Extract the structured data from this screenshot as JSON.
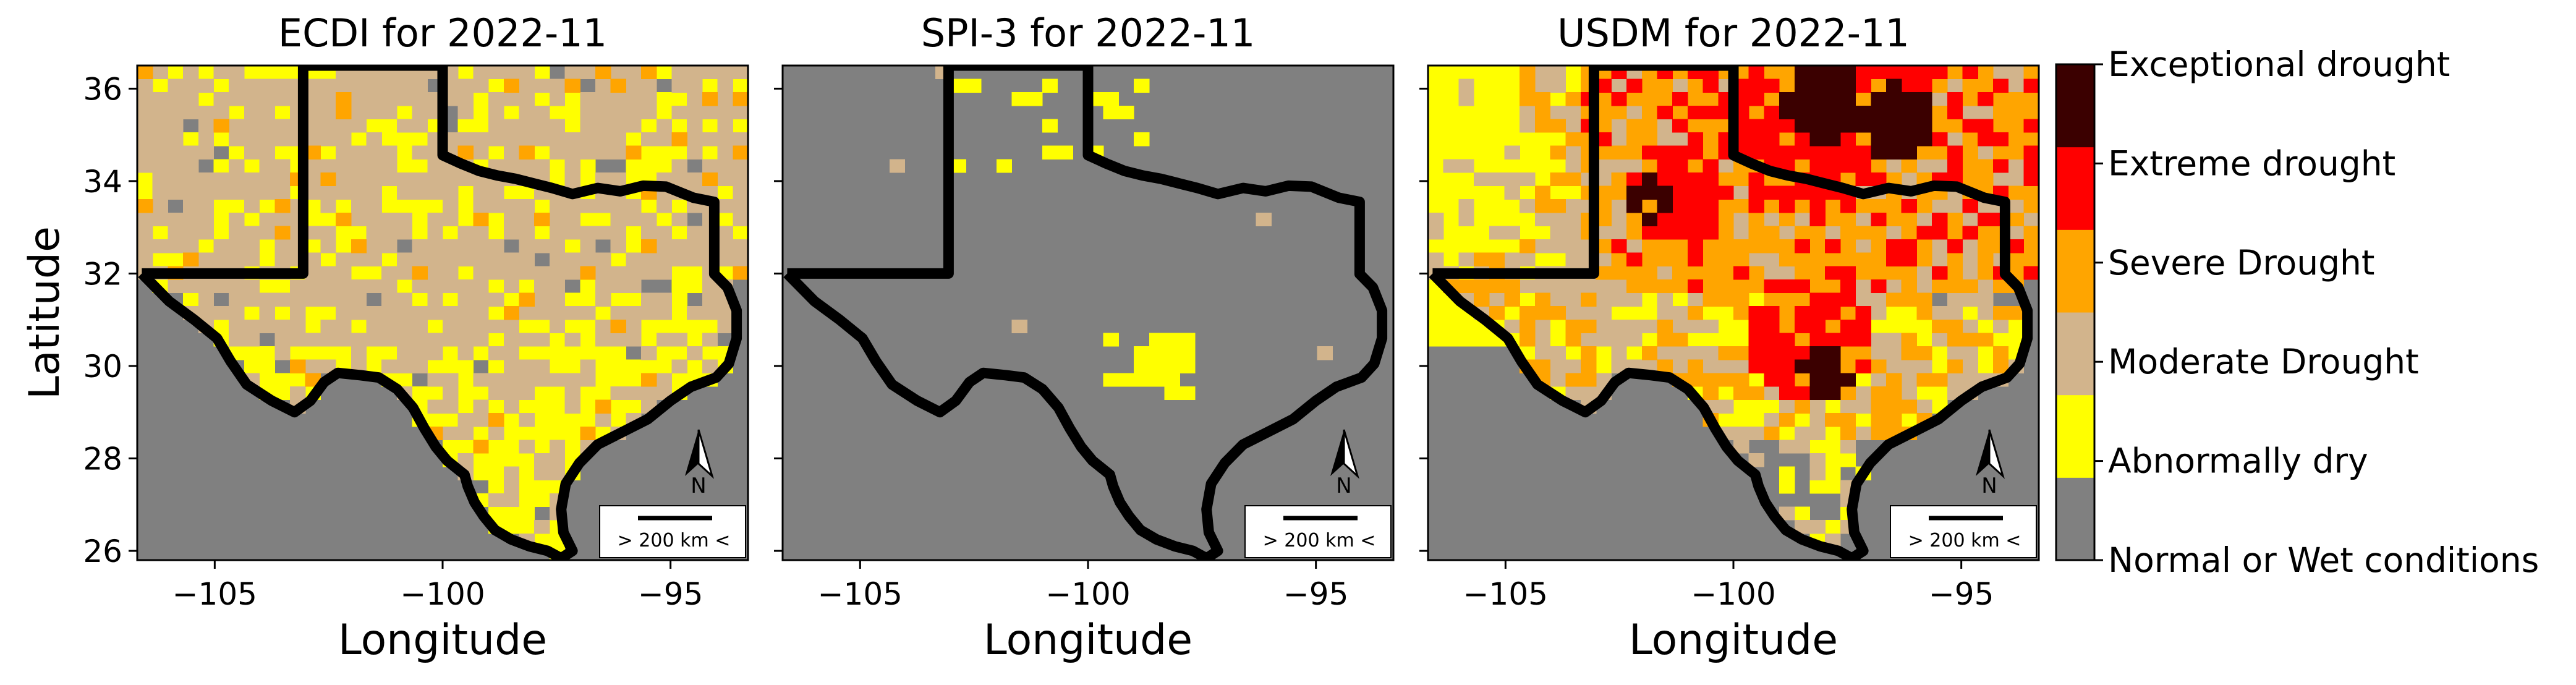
{
  "chart_data": [
    {
      "type": "heatmap",
      "title": "ECDI for 2022-11",
      "xlabel": "Longitude",
      "ylabel": "Latitude",
      "xlim": [
        -106.7,
        -93.3
      ],
      "ylim": [
        25.8,
        36.5
      ],
      "xticks": [
        -105,
        -100,
        -95
      ],
      "yticks": [
        26,
        28,
        30,
        32,
        34,
        36
      ],
      "grid": false,
      "dominant_category": "Moderate Drought",
      "secondary_category": "Abnormally dry",
      "accent_categories": [
        "Severe Drought"
      ],
      "scale_bar": "> 200 km <",
      "north_label": "N"
    },
    {
      "type": "heatmap",
      "title": "SPI-3 for 2022-11",
      "xlabel": "Longitude",
      "ylabel": "",
      "xlim": [
        -106.7,
        -93.3
      ],
      "ylim": [
        25.8,
        36.5
      ],
      "xticks": [
        -105,
        -100,
        -95
      ],
      "yticks": [
        26,
        28,
        30,
        32,
        34,
        36
      ],
      "grid": false,
      "dominant_category": "Normal or Wet conditions",
      "secondary_category": "Abnormally dry",
      "accent_categories": [
        "Moderate Drought"
      ],
      "scale_bar": "> 200 km <",
      "north_label": "N"
    },
    {
      "type": "heatmap",
      "title": "USDM for 2022-11",
      "xlabel": "Longitude",
      "ylabel": "",
      "xlim": [
        -106.7,
        -93.3
      ],
      "ylim": [
        25.8,
        36.5
      ],
      "xticks": [
        -105,
        -100,
        -95
      ],
      "yticks": [
        26,
        28,
        30,
        32,
        34,
        36
      ],
      "grid": false,
      "dominant_category": "Severe Drought",
      "secondary_category": "Extreme drought",
      "accent_categories": [
        "Exceptional drought",
        "Moderate Drought",
        "Abnormally dry"
      ],
      "scale_bar": "> 200 km <",
      "north_label": "N"
    }
  ],
  "colorbar": {
    "placement": "right",
    "categories": [
      {
        "label": "Normal or Wet conditions",
        "color": "#808080"
      },
      {
        "label": "Abnormally dry",
        "color": "#ffff00"
      },
      {
        "label": "Moderate Drought",
        "color": "#d2b48c"
      },
      {
        "label": "Severe Drought",
        "color": "#ffa500"
      },
      {
        "label": "Extreme drought",
        "color": "#ff0000"
      },
      {
        "label": "Exceptional drought",
        "color": "#3b0000"
      }
    ]
  }
}
